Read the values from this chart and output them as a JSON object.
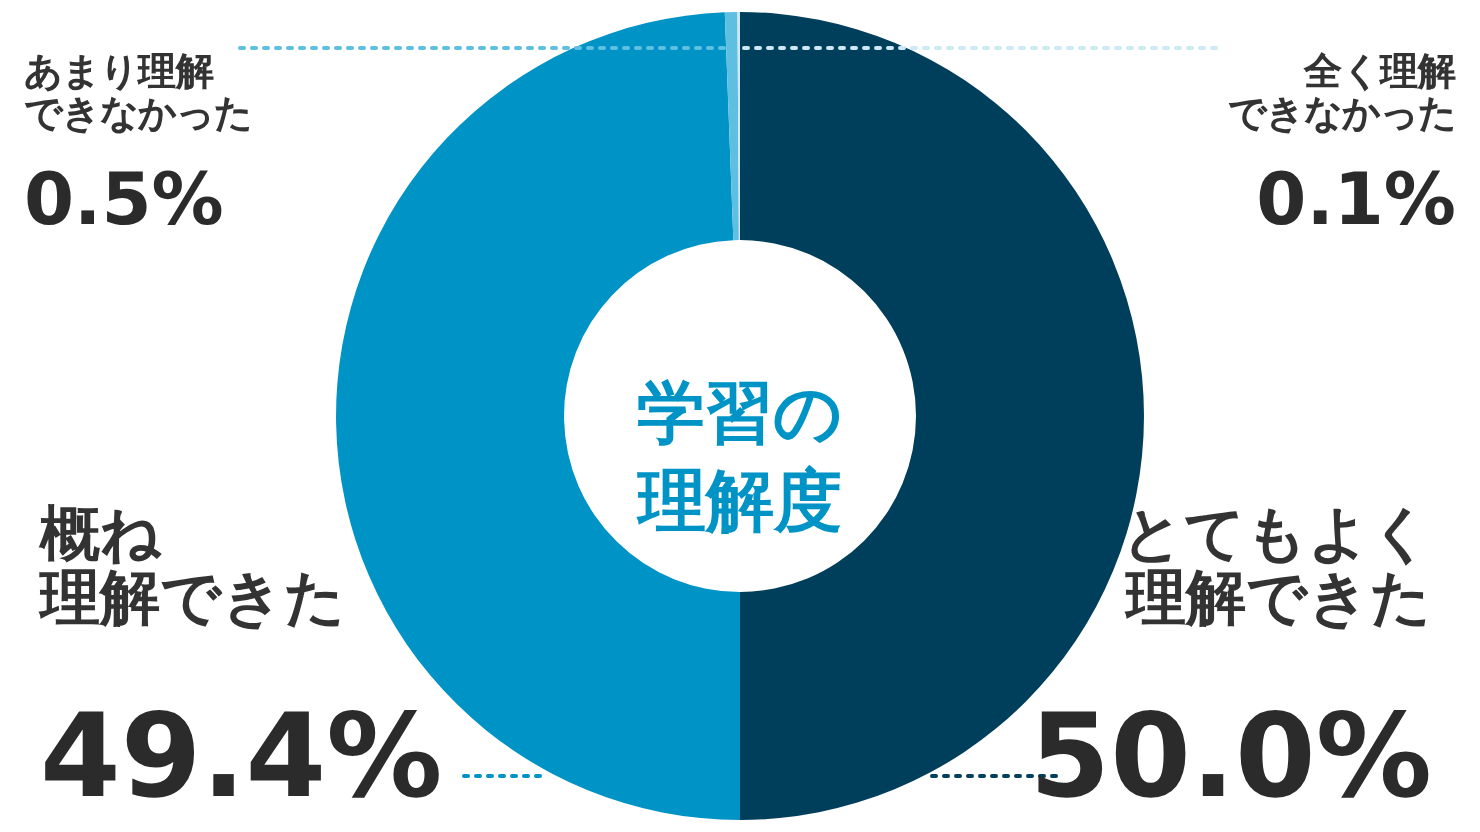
{
  "chart_data": {
    "type": "donut",
    "title": "学習の理解度",
    "categories": [
      "とてもよく理解できた",
      "概ね理解できた",
      "あまり理解できなかった",
      "全く理解できなかった"
    ],
    "values": [
      50.0,
      49.4,
      0.5,
      0.1
    ],
    "colors": [
      "#003f5c",
      "#0093c5",
      "#5fbfe0",
      "#cde9f5"
    ],
    "value_labels": [
      "50.0%",
      "49.4%",
      "0.5%",
      "0.1%"
    ]
  }
}
